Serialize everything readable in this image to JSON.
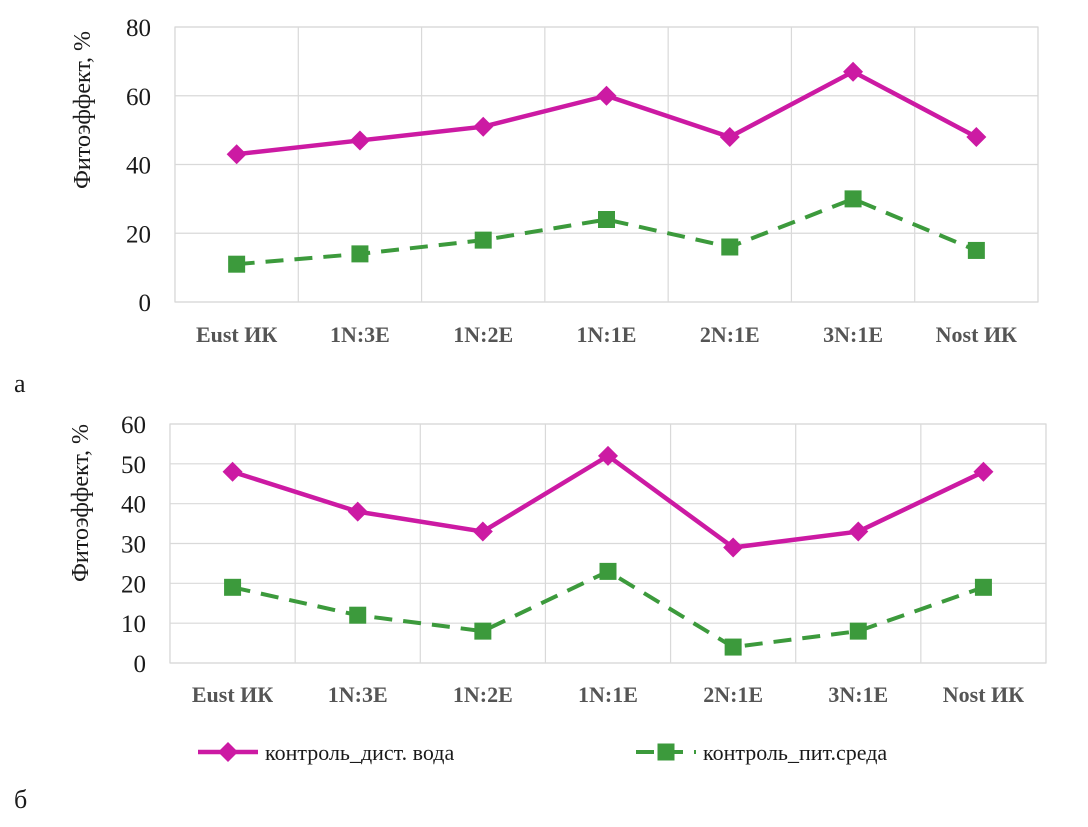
{
  "panel_labels": [
    "а",
    "б"
  ],
  "chart_data": [
    {
      "type": "line",
      "categories": [
        "Eust ИК",
        "1N:3E",
        "1N:2E",
        "1N:1E",
        "2N:1E",
        "3N:1E",
        "Nost ИК"
      ],
      "ylabel": "Фитоэффект, %",
      "xlabel": "",
      "ylim": [
        0,
        80
      ],
      "yticks": [
        0,
        20,
        40,
        60,
        80
      ],
      "grid": true,
      "series": [
        {
          "name": "контроль_дист. вода",
          "color": "#cc1aa3",
          "marker": "diamond",
          "dash": "solid",
          "values": [
            43,
            47,
            51,
            60,
            48,
            67,
            48
          ]
        },
        {
          "name": "контроль_пит.среда",
          "color": "#3c9a3c",
          "marker": "square",
          "dash": "dashed",
          "values": [
            11,
            14,
            18,
            24,
            16,
            30,
            15
          ]
        }
      ]
    },
    {
      "type": "line",
      "categories": [
        "Eust ИК",
        "1N:3E",
        "1N:2E",
        "1N:1E",
        "2N:1E",
        "3N:1E",
        "Nost ИК"
      ],
      "ylabel": "Фитоэффект, %",
      "xlabel": "",
      "ylim": [
        0,
        60
      ],
      "yticks": [
        0,
        10,
        20,
        30,
        40,
        50,
        60
      ],
      "grid": true,
      "legend": "bottom",
      "series": [
        {
          "name": "контроль_дист. вода",
          "color": "#cc1aa3",
          "marker": "diamond",
          "dash": "solid",
          "values": [
            48,
            38,
            33,
            52,
            29,
            33,
            48
          ]
        },
        {
          "name": "контроль_пит.среда",
          "color": "#3c9a3c",
          "marker": "square",
          "dash": "dashed",
          "values": [
            19,
            12,
            8,
            23,
            4,
            8,
            19
          ]
        }
      ]
    }
  ]
}
